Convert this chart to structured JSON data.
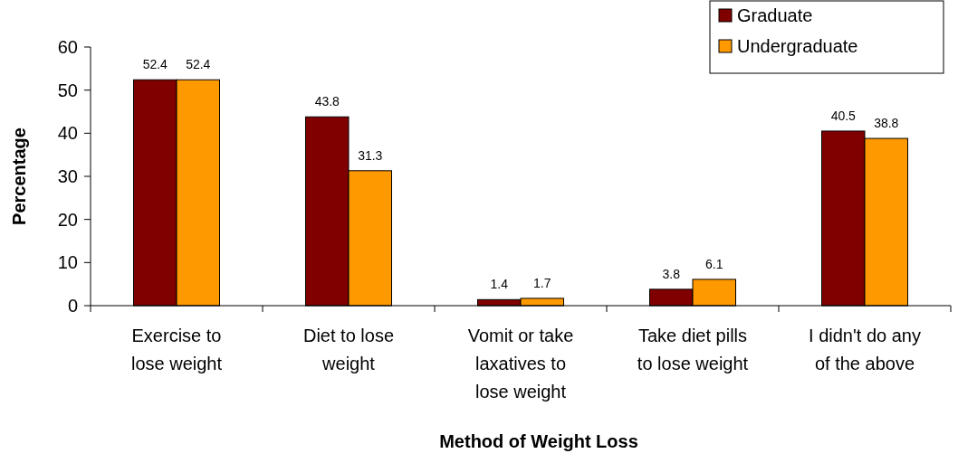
{
  "chart_data": {
    "type": "bar",
    "xlabel": "Method of Weight Loss",
    "ylabel": "Percentage",
    "categories": [
      "Exercise to lose weight",
      "Diet to lose weight",
      "Vomit or take laxatives to lose weight",
      "Take diet pills to lose weight",
      "I didn't do any of the above"
    ],
    "series": [
      {
        "name": "Graduate",
        "color": "#800000",
        "values": [
          52.4,
          43.8,
          1.4,
          3.8,
          40.5
        ]
      },
      {
        "name": "Undergraduate",
        "color": "#ff9900",
        "values": [
          52.4,
          31.3,
          1.7,
          6.1,
          38.8
        ]
      }
    ],
    "ylim": [
      0,
      60
    ],
    "yticks": [
      0,
      10,
      20,
      30,
      40,
      50,
      60
    ],
    "data_labels": true,
    "legend": "top right",
    "grid": false
  }
}
